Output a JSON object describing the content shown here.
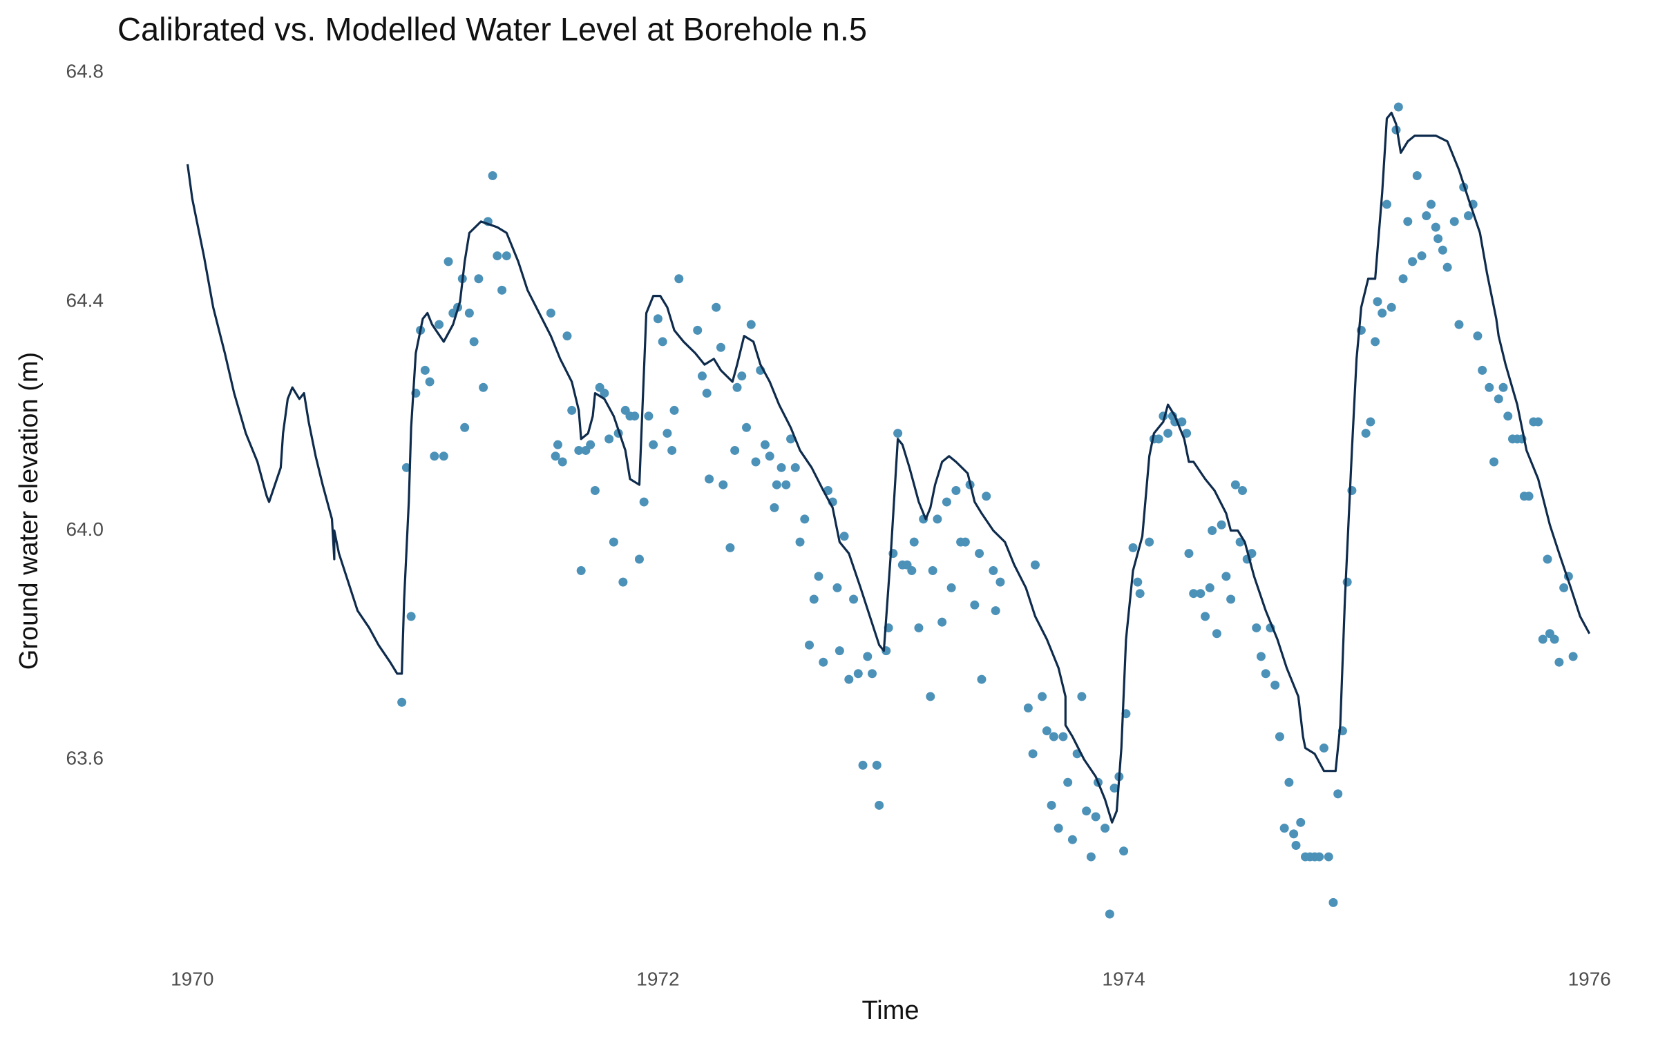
{
  "chart_data": {
    "type": "line",
    "title": "Calibrated vs. Modelled Water Level at Borehole n.5",
    "x_label": "Time",
    "y_label": "Ground water elevation (m)",
    "xlim": [
      1969.75,
      1976.25
    ],
    "xticks": [
      1970,
      1972,
      1974,
      1976
    ],
    "ylim": [
      63.26,
      64.81
    ],
    "yticks": [
      63.6,
      {
        "value": 64,
        "label": "64.0"
      },
      64.4,
      64.8
    ],
    "grid": false,
    "series": [
      {
        "type": "line",
        "color": "#0e2b4c",
        "x": [
          1969.98,
          1970.0,
          1970.05,
          1970.09,
          1970.14,
          1970.18,
          1970.23,
          1970.28,
          1970.32,
          1970.33,
          1970.38,
          1970.39,
          1970.41,
          1970.43,
          1970.46,
          1970.48,
          1970.5,
          1970.53,
          1970.56,
          1970.6,
          1970.61,
          1970.61,
          1970.63,
          1970.67,
          1970.71,
          1970.76,
          1970.8,
          1970.85,
          1970.88,
          1970.9,
          1970.91,
          1970.93,
          1970.94,
          1970.96,
          1970.99,
          1971.01,
          1971.03,
          1971.08,
          1971.12,
          1971.15,
          1971.17,
          1971.19,
          1971.24,
          1971.31,
          1971.35,
          1971.4,
          1971.44,
          1971.49,
          1971.54,
          1971.58,
          1971.63,
          1971.66,
          1971.67,
          1971.7,
          1971.72,
          1971.73,
          1971.77,
          1971.81,
          1971.86,
          1971.88,
          1971.92,
          1971.94,
          1971.95,
          1971.98,
          1972.01,
          1972.04,
          1972.07,
          1972.11,
          1972.16,
          1972.2,
          1972.24,
          1972.27,
          1972.32,
          1972.34,
          1972.37,
          1972.41,
          1972.44,
          1972.48,
          1972.52,
          1972.57,
          1972.61,
          1972.66,
          1972.71,
          1972.75,
          1972.78,
          1972.82,
          1972.87,
          1972.91,
          1972.95,
          1972.97,
          1973.0,
          1973.03,
          1973.05,
          1973.08,
          1973.12,
          1973.15,
          1973.17,
          1973.19,
          1973.22,
          1973.25,
          1973.28,
          1973.33,
          1973.36,
          1973.39,
          1973.44,
          1973.49,
          1973.53,
          1973.58,
          1973.62,
          1973.67,
          1973.72,
          1973.75,
          1973.75,
          1973.78,
          1973.83,
          1973.88,
          1973.92,
          1973.95,
          1973.97,
          1973.99,
          1974.01,
          1974.04,
          1974.06,
          1974.08,
          1974.11,
          1974.13,
          1974.17,
          1974.19,
          1974.22,
          1974.26,
          1974.28,
          1974.3,
          1974.35,
          1974.39,
          1974.44,
          1974.46,
          1974.49,
          1974.52,
          1974.56,
          1974.61,
          1974.66,
          1974.7,
          1974.75,
          1974.77,
          1974.78,
          1974.82,
          1974.86,
          1974.91,
          1974.93,
          1974.95,
          1974.98,
          1975.0,
          1975.02,
          1975.05,
          1975.08,
          1975.11,
          1975.13,
          1975.15,
          1975.17,
          1975.19,
          1975.22,
          1975.25,
          1975.34,
          1975.39,
          1975.44,
          1975.48,
          1975.53,
          1975.56,
          1975.58,
          1975.6,
          1975.61,
          1975.64,
          1975.69,
          1975.73,
          1975.78,
          1975.83,
          1975.87,
          1975.92,
          1975.96,
          1976.0
        ],
        "values": [
          64.64,
          64.58,
          64.48,
          64.39,
          64.31,
          64.24,
          64.17,
          64.12,
          64.06,
          64.05,
          64.11,
          64.17,
          64.23,
          64.25,
          64.23,
          64.24,
          64.19,
          64.13,
          64.08,
          64.02,
          63.95,
          64.0,
          63.96,
          63.91,
          63.86,
          63.83,
          63.8,
          63.77,
          63.75,
          63.75,
          63.88,
          64.05,
          64.18,
          64.31,
          64.37,
          64.38,
          64.36,
          64.33,
          64.36,
          64.4,
          64.47,
          64.52,
          64.54,
          64.53,
          64.52,
          64.47,
          64.42,
          64.38,
          64.34,
          64.3,
          64.26,
          64.21,
          64.16,
          64.17,
          64.2,
          64.24,
          64.23,
          64.2,
          64.14,
          64.09,
          64.08,
          64.28,
          64.38,
          64.41,
          64.41,
          64.39,
          64.35,
          64.33,
          64.31,
          64.29,
          64.3,
          64.28,
          64.26,
          64.29,
          64.34,
          64.33,
          64.29,
          64.26,
          64.22,
          64.18,
          64.14,
          64.11,
          64.07,
          64.04,
          63.98,
          63.96,
          63.9,
          63.85,
          63.8,
          63.79,
          63.96,
          64.16,
          64.15,
          64.11,
          64.05,
          64.02,
          64.04,
          64.08,
          64.12,
          64.13,
          64.12,
          64.1,
          64.05,
          64.03,
          64.0,
          63.98,
          63.94,
          63.9,
          63.85,
          63.81,
          63.76,
          63.71,
          63.66,
          63.64,
          63.6,
          63.57,
          63.53,
          63.49,
          63.51,
          63.62,
          63.81,
          63.93,
          63.96,
          63.99,
          64.13,
          64.17,
          64.19,
          64.22,
          64.2,
          64.16,
          64.12,
          64.12,
          64.09,
          64.07,
          64.03,
          64.0,
          64.0,
          63.98,
          63.92,
          63.86,
          63.81,
          63.76,
          63.71,
          63.64,
          63.62,
          63.61,
          63.58,
          63.58,
          63.66,
          63.88,
          64.14,
          64.3,
          64.39,
          64.44,
          64.44,
          64.59,
          64.72,
          64.73,
          64.71,
          64.66,
          64.68,
          64.69,
          64.69,
          64.68,
          64.63,
          64.58,
          64.52,
          64.45,
          64.41,
          64.37,
          64.34,
          64.29,
          64.22,
          64.14,
          64.09,
          64.01,
          63.96,
          63.9,
          63.85,
          63.82
        ]
      },
      {
        "type": "scatter",
        "color": "#4b91b8",
        "x": [
          1970.9,
          1970.92,
          1970.94,
          1970.96,
          1970.98,
          1971.0,
          1971.02,
          1971.04,
          1971.06,
          1971.08,
          1971.1,
          1971.12,
          1971.14,
          1971.16,
          1971.17,
          1971.19,
          1971.21,
          1971.23,
          1971.25,
          1971.27,
          1971.29,
          1971.31,
          1971.33,
          1971.35,
          1971.54,
          1971.56,
          1971.57,
          1971.59,
          1971.61,
          1971.63,
          1971.66,
          1971.67,
          1971.69,
          1971.71,
          1971.73,
          1971.75,
          1971.77,
          1971.79,
          1971.81,
          1971.83,
          1971.85,
          1971.86,
          1971.88,
          1971.9,
          1971.92,
          1971.94,
          1971.96,
          1971.98,
          1972.0,
          1972.02,
          1972.04,
          1972.06,
          1972.07,
          1972.09,
          1972.17,
          1972.19,
          1972.21,
          1972.22,
          1972.25,
          1972.27,
          1972.28,
          1972.31,
          1972.33,
          1972.34,
          1972.36,
          1972.38,
          1972.4,
          1972.42,
          1972.44,
          1972.46,
          1972.48,
          1972.5,
          1972.51,
          1972.53,
          1972.55,
          1972.57,
          1972.59,
          1972.61,
          1972.63,
          1972.65,
          1972.67,
          1972.69,
          1972.71,
          1972.73,
          1972.75,
          1972.77,
          1972.78,
          1972.8,
          1972.82,
          1972.84,
          1972.86,
          1972.88,
          1972.9,
          1972.92,
          1972.94,
          1972.95,
          1972.98,
          1972.99,
          1973.01,
          1973.03,
          1973.05,
          1973.07,
          1973.09,
          1973.1,
          1973.12,
          1973.14,
          1973.17,
          1973.18,
          1973.2,
          1973.22,
          1973.24,
          1973.26,
          1973.28,
          1973.3,
          1973.32,
          1973.34,
          1973.36,
          1973.38,
          1973.39,
          1973.41,
          1973.44,
          1973.45,
          1973.47,
          1973.59,
          1973.61,
          1973.62,
          1973.65,
          1973.67,
          1973.69,
          1973.7,
          1973.72,
          1973.74,
          1973.76,
          1973.78,
          1973.8,
          1973.82,
          1973.84,
          1973.86,
          1973.88,
          1973.89,
          1973.92,
          1973.94,
          1973.96,
          1973.98,
          1974.0,
          1974.01,
          1974.04,
          1974.06,
          1974.07,
          1974.11,
          1974.13,
          1974.15,
          1974.17,
          1974.19,
          1974.21,
          1974.22,
          1974.25,
          1974.27,
          1974.28,
          1974.3,
          1974.33,
          1974.35,
          1974.37,
          1974.38,
          1974.4,
          1974.42,
          1974.44,
          1974.46,
          1974.48,
          1974.5,
          1974.51,
          1974.53,
          1974.55,
          1974.57,
          1974.59,
          1974.61,
          1974.63,
          1974.65,
          1974.67,
          1974.69,
          1974.71,
          1974.73,
          1974.74,
          1974.76,
          1974.78,
          1974.8,
          1974.82,
          1974.84,
          1974.86,
          1974.88,
          1974.9,
          1974.92,
          1974.94,
          1974.96,
          1974.98,
          1975.02,
          1975.04,
          1975.06,
          1975.08,
          1975.09,
          1975.11,
          1975.13,
          1975.15,
          1975.17,
          1975.18,
          1975.2,
          1975.22,
          1975.24,
          1975.26,
          1975.28,
          1975.3,
          1975.32,
          1975.34,
          1975.35,
          1975.37,
          1975.39,
          1975.42,
          1975.44,
          1975.46,
          1975.48,
          1975.5,
          1975.52,
          1975.54,
          1975.57,
          1975.59,
          1975.61,
          1975.63,
          1975.65,
          1975.67,
          1975.69,
          1975.71,
          1975.72,
          1975.74,
          1975.76,
          1975.78,
          1975.8,
          1975.82,
          1975.83,
          1975.85,
          1975.87,
          1975.89,
          1975.91,
          1975.93
        ],
        "values": [
          63.7,
          64.11,
          63.85,
          64.24,
          64.35,
          64.28,
          64.26,
          64.13,
          64.36,
          64.13,
          64.47,
          64.38,
          64.39,
          64.44,
          64.18,
          64.38,
          64.33,
          64.44,
          64.25,
          64.54,
          64.62,
          64.48,
          64.42,
          64.48,
          64.38,
          64.13,
          64.15,
          64.12,
          64.34,
          64.21,
          64.14,
          63.93,
          64.14,
          64.15,
          64.07,
          64.25,
          64.24,
          64.16,
          63.98,
          64.17,
          63.91,
          64.21,
          64.2,
          64.2,
          63.95,
          64.05,
          64.2,
          64.15,
          64.37,
          64.33,
          64.17,
          64.14,
          64.21,
          64.44,
          64.35,
          64.27,
          64.24,
          64.09,
          64.39,
          64.32,
          64.08,
          63.97,
          64.14,
          64.25,
          64.27,
          64.18,
          64.36,
          64.12,
          64.28,
          64.15,
          64.13,
          64.04,
          64.08,
          64.11,
          64.08,
          64.16,
          64.11,
          63.98,
          64.02,
          63.8,
          63.88,
          63.92,
          63.77,
          64.07,
          64.05,
          63.9,
          63.79,
          63.99,
          63.74,
          63.88,
          63.75,
          63.59,
          63.78,
          63.75,
          63.59,
          63.52,
          63.79,
          63.83,
          63.96,
          64.17,
          63.94,
          63.94,
          63.93,
          63.98,
          63.83,
          64.02,
          63.71,
          63.93,
          64.02,
          63.84,
          64.05,
          63.9,
          64.07,
          63.98,
          63.98,
          64.08,
          63.87,
          63.96,
          63.74,
          64.06,
          63.93,
          63.86,
          63.91,
          63.69,
          63.61,
          63.94,
          63.71,
          63.65,
          63.52,
          63.64,
          63.48,
          63.64,
          63.56,
          63.46,
          63.61,
          63.71,
          63.51,
          63.43,
          63.5,
          63.56,
          63.48,
          63.33,
          63.55,
          63.57,
          63.44,
          63.68,
          63.97,
          63.91,
          63.89,
          63.98,
          64.16,
          64.16,
          64.2,
          64.17,
          64.2,
          64.19,
          64.19,
          64.17,
          63.96,
          63.89,
          63.89,
          63.85,
          63.9,
          64.0,
          63.82,
          64.01,
          63.92,
          63.88,
          64.08,
          63.98,
          64.07,
          63.95,
          63.96,
          63.83,
          63.78,
          63.75,
          63.83,
          63.73,
          63.64,
          63.48,
          63.56,
          63.47,
          63.45,
          63.49,
          63.43,
          63.43,
          63.43,
          63.43,
          63.62,
          63.43,
          63.35,
          63.54,
          63.65,
          63.91,
          64.07,
          64.35,
          64.17,
          64.19,
          64.33,
          64.4,
          64.38,
          64.57,
          64.39,
          64.7,
          64.74,
          64.44,
          64.54,
          64.47,
          64.62,
          64.48,
          64.55,
          64.57,
          64.53,
          64.51,
          64.49,
          64.46,
          64.54,
          64.36,
          64.6,
          64.55,
          64.57,
          64.34,
          64.28,
          64.25,
          64.12,
          64.23,
          64.25,
          64.2,
          64.16,
          64.16,
          64.16,
          64.06,
          64.06,
          64.19,
          64.19,
          63.81,
          63.95,
          63.82,
          63.81,
          63.77,
          63.9,
          63.92,
          63.78
        ]
      }
    ]
  }
}
